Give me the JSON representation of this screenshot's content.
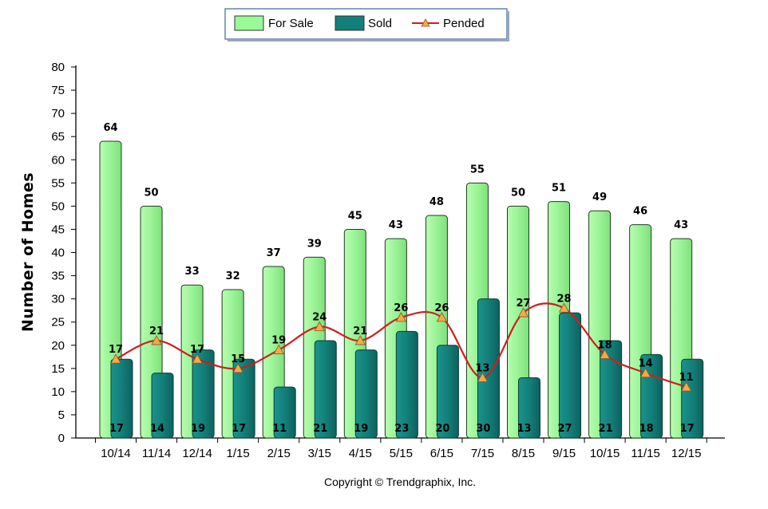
{
  "chart_data": {
    "type": "bar",
    "categories": [
      "10/14",
      "11/14",
      "12/14",
      "1/15",
      "2/15",
      "3/15",
      "4/15",
      "5/15",
      "6/15",
      "7/15",
      "8/15",
      "9/15",
      "10/15",
      "11/15",
      "12/15"
    ],
    "series": [
      {
        "name": "For Sale",
        "type": "bar",
        "color": "#98fb98",
        "values": [
          64,
          50,
          33,
          32,
          37,
          39,
          45,
          43,
          48,
          55,
          50,
          51,
          49,
          46,
          43
        ]
      },
      {
        "name": "Sold",
        "type": "bar",
        "color": "#127f7a",
        "values": [
          17,
          14,
          19,
          17,
          11,
          21,
          19,
          23,
          20,
          30,
          13,
          27,
          21,
          18,
          17
        ]
      },
      {
        "name": "Pended",
        "type": "line",
        "color": "#cc1f1f",
        "marker_color": "#f5a94a",
        "values": [
          17,
          21,
          17,
          15,
          19,
          24,
          21,
          26,
          26,
          13,
          27,
          28,
          18,
          14,
          11
        ]
      }
    ],
    "title": "",
    "xlabel": "",
    "ylabel": "Number of Homes",
    "ylim": [
      0,
      80
    ],
    "yticks": [
      0,
      5,
      10,
      15,
      20,
      25,
      30,
      35,
      40,
      45,
      50,
      55,
      60,
      65,
      70,
      75,
      80
    ],
    "grid": false,
    "legend_position": "top-center",
    "copyright": "Copyright © Trendgraphix, Inc."
  }
}
